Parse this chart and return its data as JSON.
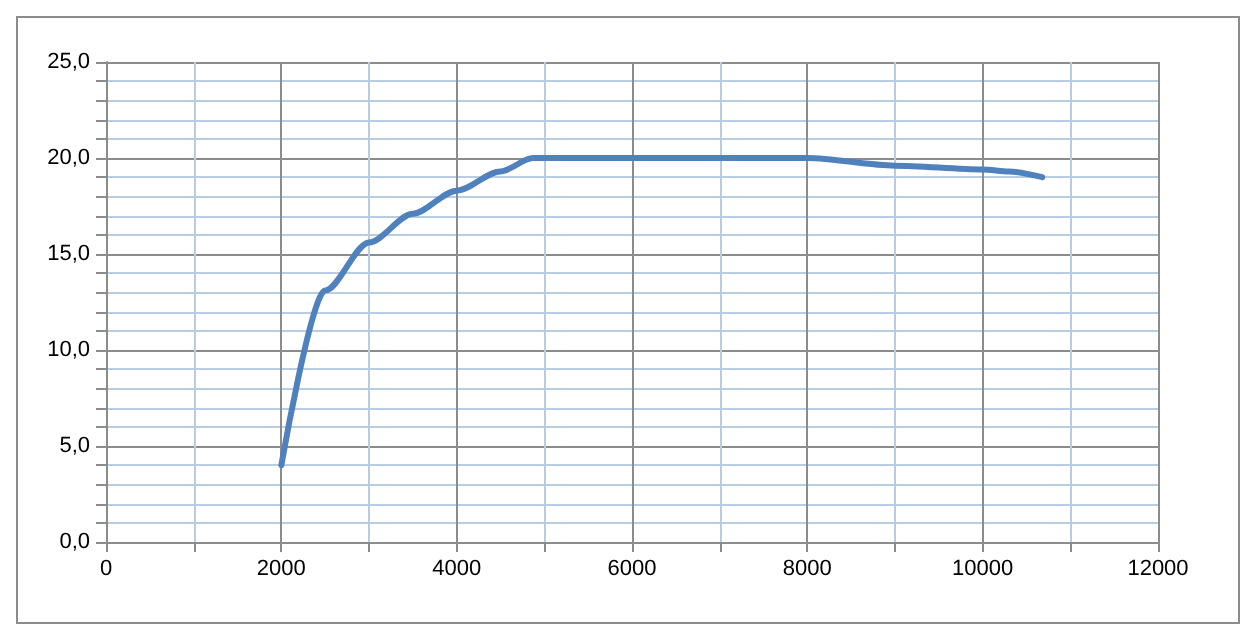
{
  "chart_data": {
    "type": "line",
    "x": [
      2000,
      2500,
      3000,
      3500,
      4000,
      4500,
      4870,
      8000,
      9000,
      10000,
      10300,
      10680
    ],
    "series": [
      {
        "color": "#4f81bd",
        "values": [
          4.0,
          13.1,
          15.6,
          17.1,
          18.3,
          19.3,
          20.0,
          20.0,
          19.6,
          19.4,
          19.3,
          19.0
        ]
      }
    ],
    "xlim": [
      0,
      12000
    ],
    "xticks": [
      0,
      {
        "value": 1000,
        "label": null
      },
      2000,
      {
        "value": 3000,
        "label": null
      },
      4000,
      {
        "value": 5000,
        "label": null
      },
      6000,
      {
        "value": 7000,
        "label": null
      },
      8000,
      {
        "value": 9000,
        "label": null
      },
      10000,
      {
        "value": 11000,
        "label": null
      },
      12000
    ],
    "ylim": [
      0,
      25
    ],
    "yticks": [
      {
        "value": 0,
        "label": "0,0"
      },
      {
        "value": 1,
        "label": null
      },
      {
        "value": 2,
        "label": null
      },
      {
        "value": 3,
        "label": null
      },
      {
        "value": 4,
        "label": null
      },
      {
        "value": 5,
        "label": "5,0"
      },
      {
        "value": 6,
        "label": null
      },
      {
        "value": 7,
        "label": null
      },
      {
        "value": 8,
        "label": null
      },
      {
        "value": 9,
        "label": null
      },
      {
        "value": 10,
        "label": "10,0"
      },
      {
        "value": 11,
        "label": null
      },
      {
        "value": 12,
        "label": null
      },
      {
        "value": 13,
        "label": null
      },
      {
        "value": 14,
        "label": null
      },
      {
        "value": 15,
        "label": "15,0"
      },
      {
        "value": 16,
        "label": null
      },
      {
        "value": 17,
        "label": null
      },
      {
        "value": 18,
        "label": null
      },
      {
        "value": 19,
        "label": null
      },
      {
        "value": 20,
        "label": "20,0"
      },
      {
        "value": 21,
        "label": null
      },
      {
        "value": 22,
        "label": null
      },
      {
        "value": 23,
        "label": null
      },
      {
        "value": 24,
        "label": null
      },
      {
        "value": 25,
        "label": "25,0"
      }
    ],
    "grid": true,
    "marker": "none",
    "line_style": "solid"
  }
}
